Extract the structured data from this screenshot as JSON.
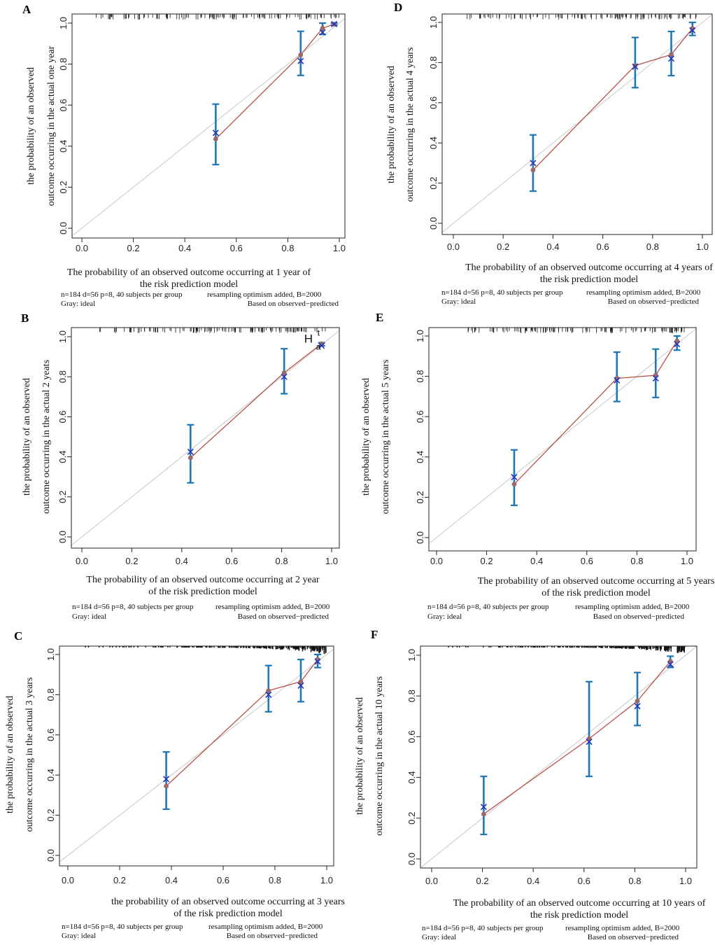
{
  "colors": {
    "ideal": "#c8c8c8",
    "calibration_line": "#b5453a",
    "apparent_point": "#9a6a6a",
    "bias_corrected_marker": "#2233bb",
    "error_bar": "#1f77b4",
    "rug": "#111111"
  },
  "chart_data": [
    {
      "id": "A",
      "type": "line",
      "panel_label": "A",
      "xlabel_lines": [
        "The probability of an observed outcome occurring at 1 year of",
        "the risk prediction model"
      ],
      "ylabel_lines": [
        "the probability of an observed",
        "outcome occurring in the actual  one  year"
      ],
      "xlim": [
        0,
        1
      ],
      "ylim": [
        0,
        1
      ],
      "x_ticks": [
        "0.0",
        "0.2",
        "0.4",
        "0.6",
        "0.8",
        "1.0"
      ],
      "y_ticks": [
        "0.0",
        "0.2",
        "0.4",
        "0.6",
        "0.8",
        "1.0"
      ],
      "predicted": [
        0.52,
        0.85,
        0.935,
        0.98
      ],
      "observed": [
        0.435,
        0.845,
        0.975,
        0.995
      ],
      "bias_corrected": [
        0.465,
        0.815,
        0.955,
        0.995
      ],
      "ci_lower": [
        0.31,
        0.745,
        0.945,
        0.99
      ],
      "ci_upper": [
        0.605,
        0.96,
        1.0,
        1.0
      ],
      "rug_density": "sparse",
      "annotation": "",
      "footnote": {
        "line1_left": "n=184 d=56 p=8, 40 subjects per group",
        "line1_right": "resampling optimism added, B=2000",
        "line2_left": "Gray: ideal",
        "line2_right": "Based on observed−predicted"
      }
    },
    {
      "id": "B",
      "type": "line",
      "panel_label": "B",
      "xlabel_lines": [
        "The probability of an observed outcome occurring at 2 year",
        "of the risk prediction model"
      ],
      "ylabel_lines": [
        "the probability of an observed",
        "outcome occurring in the actual   2  yeats"
      ],
      "xlim": [
        0,
        1
      ],
      "ylim": [
        0,
        1
      ],
      "x_ticks": [
        "0.0",
        "0.2",
        "0.4",
        "0.6",
        "0.8",
        "1.0"
      ],
      "y_ticks": [
        "0.0",
        "0.2",
        "0.4",
        "0.6",
        "0.8",
        "1.0"
      ],
      "predicted": [
        0.435,
        0.81,
        0.96
      ],
      "observed": [
        0.395,
        0.82,
        0.965
      ],
      "bias_corrected": [
        0.425,
        0.8,
        0.955
      ],
      "ci_lower": [
        0.27,
        0.715,
        0.955
      ],
      "ci_upper": [
        0.56,
        0.94,
        0.97
      ],
      "rug_density": "sparse",
      "annotation": "H",
      "annotation_sup": "t",
      "annotation_sub": "a",
      "footnote": {
        "line1_left": "n=184 d=56 p=8, 40 subjects per group",
        "line1_right": "resampling optimism added, B=2000",
        "line2_left": "Gray: ideal",
        "line2_right": "Based on observed−predicted"
      }
    },
    {
      "id": "C",
      "type": "line",
      "panel_label": "C",
      "xlabel_lines": [
        "the probability of an observed outcome occurring at 3 years",
        "of the risk prediction model"
      ],
      "ylabel_lines": [
        "the probability of an observed",
        "outcome occurring in the actual 3  years"
      ],
      "xlim": [
        0,
        1
      ],
      "ylim": [
        0,
        1
      ],
      "x_ticks": [
        "0.0",
        "0.2",
        "0.4",
        "0.6",
        "0.8",
        "1.0"
      ],
      "y_ticks": [
        "0.0",
        "0.2",
        "0.4",
        "0.6",
        "0.8",
        "1.0"
      ],
      "predicted": [
        0.38,
        0.775,
        0.9,
        0.965
      ],
      "observed": [
        0.345,
        0.82,
        0.865,
        0.975
      ],
      "bias_corrected": [
        0.38,
        0.8,
        0.845,
        0.965
      ],
      "ci_lower": [
        0.23,
        0.715,
        0.765,
        0.935
      ],
      "ci_upper": [
        0.515,
        0.945,
        0.975,
        1.0
      ],
      "rug_density": "dense",
      "annotation": "",
      "footnote": {
        "line1_left": "n=184 d=56 p=8, 40 subjects per  group",
        "line1_right": "resampling optimism added, B=2000",
        "line2_left": "Gray: ideal",
        "line2_right": "Based on observed−predicted"
      }
    },
    {
      "id": "D",
      "type": "line",
      "panel_label": "D",
      "xlabel_lines": [
        "The probability of an observed outcome occurring at 4 years of",
        "the risk prediction model"
      ],
      "ylabel_lines": [
        "the probability of an observed",
        "outcome occurring in the actual 4  years"
      ],
      "xlim": [
        0,
        1
      ],
      "ylim": [
        0,
        1
      ],
      "x_ticks": [
        "0.0",
        "0.2",
        "0.4",
        "0.6",
        "0.8",
        "1.0"
      ],
      "y_ticks": [
        "0.0",
        "0.2",
        "0.4",
        "0.6",
        "0.8",
        "1.0"
      ],
      "predicted": [
        0.32,
        0.73,
        0.875,
        0.96
      ],
      "observed": [
        0.265,
        0.785,
        0.84,
        0.97
      ],
      "bias_corrected": [
        0.3,
        0.78,
        0.82,
        0.96
      ],
      "ci_lower": [
        0.16,
        0.675,
        0.735,
        0.935
      ],
      "ci_upper": [
        0.44,
        0.925,
        0.955,
        1.0
      ],
      "rug_density": "sparse",
      "annotation": "",
      "footnote": {
        "line1_left": "n=184 d=56 p=8, 40 subjects per group",
        "line1_right": "resampling optimism added, B=2000",
        "line2_left": "Gray: ideal",
        "line2_right": "Based on observed−predicted"
      }
    },
    {
      "id": "E",
      "type": "line",
      "panel_label": "E",
      "xlabel_lines": [
        "The probability of an observed outcome occurring at 5 years",
        "of the risk prediction model"
      ],
      "ylabel_lines": [
        "the probability of an observed",
        "outcome occurring in the actual 5  years"
      ],
      "xlim": [
        0,
        1
      ],
      "ylim": [
        0,
        1
      ],
      "x_ticks": [
        "0.0",
        "0.2",
        "0.4",
        "0.6",
        "0.8",
        "1.0"
      ],
      "y_ticks": [
        "0.0",
        "0.2",
        "0.4",
        "0.6",
        "0.8",
        "1.0"
      ],
      "predicted": [
        0.31,
        0.72,
        0.875,
        0.96
      ],
      "observed": [
        0.265,
        0.79,
        0.805,
        0.975
      ],
      "bias_corrected": [
        0.3,
        0.78,
        0.79,
        0.96
      ],
      "ci_lower": [
        0.16,
        0.675,
        0.695,
        0.93
      ],
      "ci_upper": [
        0.435,
        0.92,
        0.935,
        1.0
      ],
      "rug_density": "sparse",
      "annotation": "",
      "footnote": {
        "line1_left": "n=184 d=56 p=8, 40 subjects per group",
        "line1_right": "resampling optimism added, B=2000",
        "line2_left": "Gray: ideal",
        "line2_right": "Based on observed−predicted"
      }
    },
    {
      "id": "F",
      "type": "line",
      "panel_label": "F",
      "xlabel_lines": [
        "The probability of an observed outcome occurring at 10 years of",
        "the risk prediction model"
      ],
      "ylabel_lines": [
        "the probability of an observed",
        "outcome occurring in the actual 10  years"
      ],
      "xlim": [
        0,
        1
      ],
      "ylim": [
        0,
        1
      ],
      "x_ticks": [
        "0.0",
        "0.2",
        "0.4",
        "0.6",
        "0.8",
        "1.0"
      ],
      "y_ticks": [
        "0.0",
        "0.2",
        "0.4",
        "0.6",
        "0.8",
        "1.0"
      ],
      "predicted": [
        0.205,
        0.62,
        0.81,
        0.94
      ],
      "observed": [
        0.22,
        0.59,
        0.775,
        0.97
      ],
      "bias_corrected": [
        0.255,
        0.575,
        0.75,
        0.955
      ],
      "ci_lower": [
        0.12,
        0.405,
        0.655,
        0.94
      ],
      "ci_upper": [
        0.405,
        0.87,
        0.915,
        0.995
      ],
      "rug_density": "dense",
      "annotation": "",
      "footnote": {
        "line1_left": "n=184 d=56 p=8, 40 subjects per group",
        "line1_right": "resampling optimism added, B=2000",
        "line2_left": "Gray: ideal",
        "line2_right": "Based on observed−predicted"
      }
    }
  ]
}
